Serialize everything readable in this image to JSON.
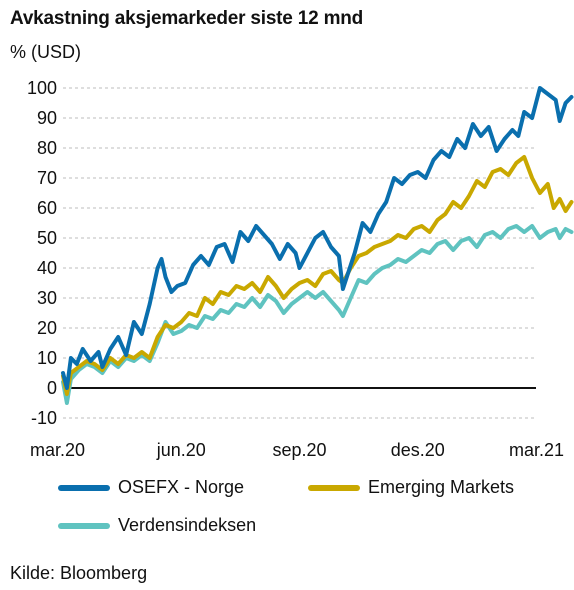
{
  "header": {
    "title": "Avkastning aksjemarkeder siste 12 mnd",
    "unit": "% (USD)"
  },
  "footer": {
    "source": "Kilde: Bloomberg"
  },
  "chart_data": {
    "type": "line",
    "title": "Avkastning aksjemarkeder siste 12 mnd",
    "ylabel": "% (USD)",
    "xlabel": "",
    "ylim": [
      -10,
      100
    ],
    "xlim": [
      0,
      12
    ],
    "yticks": [
      100,
      90,
      80,
      70,
      60,
      50,
      40,
      30,
      20,
      10,
      0,
      -10
    ],
    "x_ticks": [
      {
        "x": 0,
        "label": "mar.20"
      },
      {
        "x": 3,
        "label": "jun.20"
      },
      {
        "x": 6,
        "label": "sep.20"
      },
      {
        "x": 9,
        "label": "des.20"
      },
      {
        "x": 12,
        "label": "mar.21"
      }
    ],
    "grid": "horizontal-dashed",
    "legend_position": "bottom",
    "series": [
      {
        "name": "OSEFX - Norge",
        "color": "#0a6fae",
        "points": [
          [
            0,
            5
          ],
          [
            0.1,
            0
          ],
          [
            0.2,
            10
          ],
          [
            0.35,
            8
          ],
          [
            0.5,
            13
          ],
          [
            0.7,
            9
          ],
          [
            0.9,
            12
          ],
          [
            1,
            7
          ],
          [
            1.2,
            13
          ],
          [
            1.4,
            17
          ],
          [
            1.6,
            11
          ],
          [
            1.8,
            22
          ],
          [
            2,
            18
          ],
          [
            2.2,
            28
          ],
          [
            2.4,
            40
          ],
          [
            2.5,
            43
          ],
          [
            2.6,
            37
          ],
          [
            2.75,
            32
          ],
          [
            2.9,
            34
          ],
          [
            3.1,
            35
          ],
          [
            3.3,
            41
          ],
          [
            3.5,
            44
          ],
          [
            3.7,
            41
          ],
          [
            3.9,
            47
          ],
          [
            4.1,
            48
          ],
          [
            4.3,
            42
          ],
          [
            4.5,
            52
          ],
          [
            4.7,
            49
          ],
          [
            4.9,
            54
          ],
          [
            5.1,
            51
          ],
          [
            5.3,
            48
          ],
          [
            5.5,
            43
          ],
          [
            5.7,
            48
          ],
          [
            5.9,
            45
          ],
          [
            6,
            40
          ],
          [
            6.2,
            45
          ],
          [
            6.4,
            50
          ],
          [
            6.6,
            52
          ],
          [
            6.8,
            47
          ],
          [
            7,
            44
          ],
          [
            7.1,
            33
          ],
          [
            7.2,
            37
          ],
          [
            7.4,
            45
          ],
          [
            7.6,
            55
          ],
          [
            7.8,
            52
          ],
          [
            8,
            58
          ],
          [
            8.2,
            62
          ],
          [
            8.4,
            70
          ],
          [
            8.6,
            68
          ],
          [
            8.8,
            71
          ],
          [
            9,
            72
          ],
          [
            9.2,
            70
          ],
          [
            9.4,
            76
          ],
          [
            9.6,
            79
          ],
          [
            9.8,
            77
          ],
          [
            10,
            83
          ],
          [
            10.2,
            80
          ],
          [
            10.4,
            88
          ],
          [
            10.6,
            84
          ],
          [
            10.8,
            87
          ],
          [
            11,
            79
          ],
          [
            11.2,
            83
          ],
          [
            11.4,
            86
          ],
          [
            11.55,
            84
          ],
          [
            11.7,
            92
          ],
          [
            11.9,
            90
          ],
          [
            12.1,
            100
          ],
          [
            12.3,
            98
          ],
          [
            12.5,
            96
          ],
          [
            12.6,
            89
          ],
          [
            12.75,
            95
          ],
          [
            12.9,
            97
          ]
        ]
      },
      {
        "name": "Emerging Markets",
        "color": "#c9a800",
        "points": [
          [
            0,
            4
          ],
          [
            0.1,
            -2
          ],
          [
            0.2,
            5
          ],
          [
            0.4,
            7
          ],
          [
            0.6,
            9
          ],
          [
            0.8,
            8
          ],
          [
            1,
            6
          ],
          [
            1.2,
            10
          ],
          [
            1.4,
            8
          ],
          [
            1.6,
            11
          ],
          [
            1.8,
            10
          ],
          [
            2,
            12
          ],
          [
            2.2,
            10
          ],
          [
            2.4,
            17
          ],
          [
            2.6,
            21
          ],
          [
            2.8,
            20
          ],
          [
            3,
            22
          ],
          [
            3.2,
            25
          ],
          [
            3.4,
            24
          ],
          [
            3.6,
            30
          ],
          [
            3.8,
            28
          ],
          [
            4,
            32
          ],
          [
            4.2,
            31
          ],
          [
            4.4,
            34
          ],
          [
            4.6,
            33
          ],
          [
            4.8,
            35
          ],
          [
            5,
            32
          ],
          [
            5.2,
            37
          ],
          [
            5.4,
            34
          ],
          [
            5.6,
            30
          ],
          [
            5.8,
            33
          ],
          [
            6,
            35
          ],
          [
            6.2,
            36
          ],
          [
            6.4,
            34
          ],
          [
            6.6,
            38
          ],
          [
            6.8,
            39
          ],
          [
            7,
            36
          ],
          [
            7.1,
            35
          ],
          [
            7.3,
            40
          ],
          [
            7.5,
            44
          ],
          [
            7.7,
            45
          ],
          [
            7.9,
            47
          ],
          [
            8.1,
            48
          ],
          [
            8.3,
            49
          ],
          [
            8.5,
            51
          ],
          [
            8.7,
            50
          ],
          [
            8.9,
            53
          ],
          [
            9.1,
            54
          ],
          [
            9.3,
            52
          ],
          [
            9.5,
            56
          ],
          [
            9.7,
            58
          ],
          [
            9.9,
            62
          ],
          [
            10.1,
            60
          ],
          [
            10.3,
            64
          ],
          [
            10.5,
            69
          ],
          [
            10.7,
            67
          ],
          [
            10.9,
            72
          ],
          [
            11.1,
            73
          ],
          [
            11.3,
            71
          ],
          [
            11.5,
            75
          ],
          [
            11.7,
            77
          ],
          [
            11.9,
            70
          ],
          [
            12.1,
            65
          ],
          [
            12.3,
            68
          ],
          [
            12.45,
            60
          ],
          [
            12.6,
            63
          ],
          [
            12.75,
            59
          ],
          [
            12.9,
            62
          ]
        ]
      },
      {
        "name": "Verdensindeksen",
        "color": "#5fc3c0",
        "points": [
          [
            0,
            2
          ],
          [
            0.1,
            -5
          ],
          [
            0.2,
            3
          ],
          [
            0.4,
            6
          ],
          [
            0.6,
            8
          ],
          [
            0.8,
            7
          ],
          [
            1,
            5
          ],
          [
            1.2,
            9
          ],
          [
            1.4,
            7
          ],
          [
            1.6,
            10
          ],
          [
            1.8,
            9
          ],
          [
            2,
            11
          ],
          [
            2.2,
            9
          ],
          [
            2.4,
            15
          ],
          [
            2.6,
            22
          ],
          [
            2.8,
            18
          ],
          [
            3,
            19
          ],
          [
            3.2,
            21
          ],
          [
            3.4,
            20
          ],
          [
            3.6,
            24
          ],
          [
            3.8,
            23
          ],
          [
            4,
            26
          ],
          [
            4.2,
            25
          ],
          [
            4.4,
            28
          ],
          [
            4.6,
            27
          ],
          [
            4.8,
            30
          ],
          [
            5,
            27
          ],
          [
            5.2,
            31
          ],
          [
            5.4,
            29
          ],
          [
            5.6,
            25
          ],
          [
            5.8,
            28
          ],
          [
            6,
            30
          ],
          [
            6.2,
            32
          ],
          [
            6.4,
            30
          ],
          [
            6.6,
            32
          ],
          [
            6.8,
            29
          ],
          [
            7,
            26
          ],
          [
            7.1,
            24
          ],
          [
            7.3,
            30
          ],
          [
            7.5,
            36
          ],
          [
            7.7,
            35
          ],
          [
            7.9,
            38
          ],
          [
            8.1,
            40
          ],
          [
            8.3,
            41
          ],
          [
            8.5,
            43
          ],
          [
            8.7,
            42
          ],
          [
            8.9,
            44
          ],
          [
            9.1,
            46
          ],
          [
            9.3,
            45
          ],
          [
            9.5,
            48
          ],
          [
            9.7,
            49
          ],
          [
            9.9,
            46
          ],
          [
            10.1,
            49
          ],
          [
            10.3,
            50
          ],
          [
            10.5,
            47
          ],
          [
            10.7,
            51
          ],
          [
            10.9,
            52
          ],
          [
            11.1,
            50
          ],
          [
            11.3,
            53
          ],
          [
            11.5,
            54
          ],
          [
            11.7,
            52
          ],
          [
            11.9,
            54
          ],
          [
            12.1,
            50
          ],
          [
            12.3,
            52
          ],
          [
            12.5,
            53
          ],
          [
            12.6,
            50
          ],
          [
            12.75,
            53
          ],
          [
            12.9,
            52
          ]
        ]
      }
    ]
  }
}
